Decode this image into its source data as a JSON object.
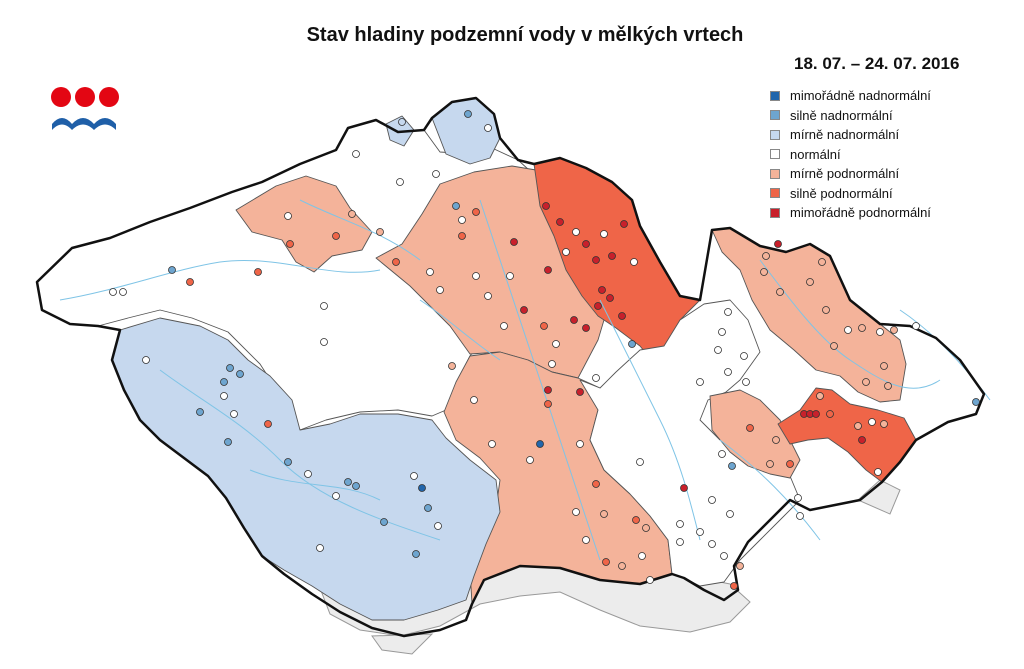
{
  "title": "Stav hladiny podzemní vody v mělkých vrtech",
  "date_range": "18. 07. – 24. 07. 2016",
  "logo": {
    "name": "chmi-logo",
    "colors": [
      "#e30613",
      "#1f5fa8"
    ]
  },
  "legend": [
    {
      "key": "mn",
      "label": "mimořádně nadnormální",
      "color": "#2166ac"
    },
    {
      "key": "sn",
      "label": "silně nadnormální",
      "color": "#6ea5cf"
    },
    {
      "key": "wn",
      "label": "mírně nadnormální",
      "color": "#c6d8ee"
    },
    {
      "key": "n",
      "label": "normální",
      "color": "#ffffff"
    },
    {
      "key": "wp",
      "label": "mírně podnormální",
      "color": "#f4b39a"
    },
    {
      "key": "sp",
      "label": "silně podnormální",
      "color": "#ef6548"
    },
    {
      "key": "mp",
      "label": "mimořádně podnormální",
      "color": "#c8202b"
    }
  ],
  "map_colors": {
    "border": "#111111",
    "basin_outline": "#555555",
    "rivers": "#7fc4e6",
    "outside_country": "#e8e8e8"
  }
}
